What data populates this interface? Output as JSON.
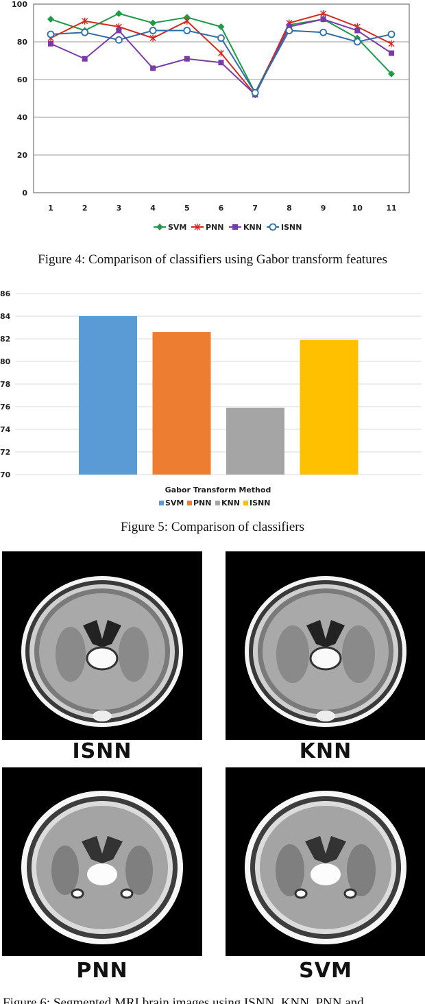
{
  "chart_data": [
    {
      "type": "line",
      "x": [
        1,
        2,
        3,
        4,
        5,
        6,
        7,
        8,
        9,
        10,
        11
      ],
      "ylim": [
        0,
        100
      ],
      "yticks": [
        0,
        20,
        40,
        60,
        80,
        100
      ],
      "grid": true,
      "legend": "bottom",
      "series": [
        {
          "name": "SVM",
          "color": "#1f9a4a",
          "marker": "diamond",
          "values": [
            92,
            86,
            95,
            90,
            93,
            88,
            53,
            89,
            92,
            82,
            63
          ]
        },
        {
          "name": "PNN",
          "color": "#d42a1e",
          "marker": "star",
          "values": [
            82,
            91,
            88,
            82,
            91,
            74,
            52,
            90,
            95,
            88,
            79
          ]
        },
        {
          "name": "KNN",
          "color": "#7b3aa8",
          "marker": "square",
          "values": [
            79,
            71,
            86,
            66,
            71,
            69,
            52,
            88,
            92,
            86,
            74
          ]
        },
        {
          "name": "ISNN",
          "color": "#2e6ea6",
          "marker": "circle",
          "values": [
            84,
            85,
            81,
            86,
            86,
            82,
            53,
            86,
            85,
            80,
            84
          ]
        }
      ]
    },
    {
      "type": "bar",
      "categories": [
        "SVM",
        "PNN",
        "KNN",
        "ISNN"
      ],
      "values": [
        84.0,
        82.6,
        75.9,
        81.9
      ],
      "colors": [
        "#5b9bd5",
        "#ed7d31",
        "#a5a5a5",
        "#ffc000"
      ],
      "xlabel": "Gabor Transform Method",
      "ylim": [
        70,
        86
      ],
      "yticks": [
        70,
        72,
        74,
        76,
        78,
        80,
        82,
        84,
        86
      ],
      "grid": true,
      "legend": "bottom"
    }
  ],
  "captions": {
    "fig4": "Figure 4: Comparison of classifiers using Gabor transform features",
    "fig5": "Figure 5: Comparison of classifiers",
    "fig6": "Figure 6: Segmented MRI brain images using ISNN, KNN, PNN and"
  },
  "panels": {
    "isnn": "ISNN",
    "knn": "KNN",
    "pnn": "PNN",
    "svm": "SVM"
  }
}
